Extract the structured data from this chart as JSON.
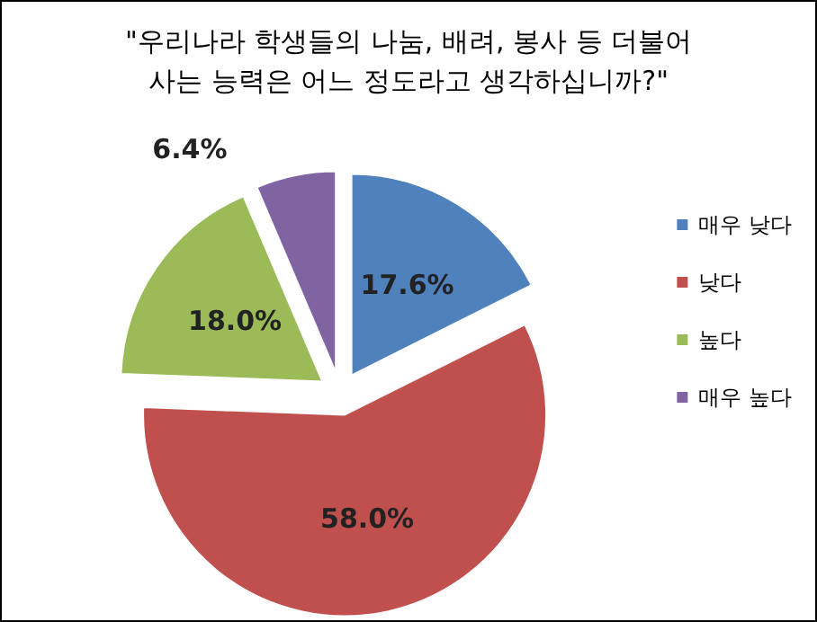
{
  "chart_data": {
    "type": "pie",
    "title": "\"우리나라 학생들의 나눔, 배려, 봉사 등 더불어\n사는 능력은 어느 정도라고 생각하십니까?\"",
    "categories": [
      "매우 낮다",
      "낮다",
      "높다",
      "매우 높다"
    ],
    "values": [
      17.6,
      58.0,
      18.0,
      6.4
    ],
    "value_labels": [
      "17.6%",
      "58.0%",
      "18.0%",
      "6.4%"
    ],
    "colors": [
      "#4f81bd",
      "#c0504d",
      "#9bbb59",
      "#8064a2"
    ],
    "legend": "right"
  }
}
